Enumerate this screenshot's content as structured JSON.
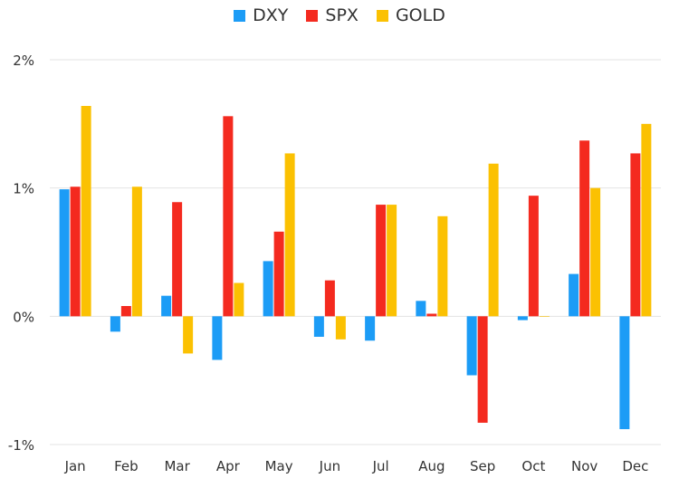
{
  "chart_data": {
    "type": "bar",
    "title": "",
    "xlabel": "",
    "ylabel": "",
    "categories": [
      "Jan",
      "Feb",
      "Mar",
      "Apr",
      "May",
      "Jun",
      "Jul",
      "Aug",
      "Sep",
      "Oct",
      "Nov",
      "Dec"
    ],
    "series": [
      {
        "name": "DXY",
        "color": "#1c9cf6",
        "values": [
          0.99,
          -0.12,
          0.16,
          -0.34,
          0.43,
          -0.16,
          -0.19,
          0.12,
          -0.46,
          -0.03,
          0.33,
          -0.88
        ]
      },
      {
        "name": "SPX",
        "color": "#f42a1f",
        "values": [
          1.01,
          0.08,
          0.89,
          1.56,
          0.66,
          0.28,
          0.87,
          0.02,
          -0.83,
          0.94,
          1.37,
          1.27
        ]
      },
      {
        "name": "GOLD",
        "color": "#fbc102",
        "values": [
          1.64,
          1.01,
          -0.29,
          0.26,
          1.27,
          -0.18,
          0.87,
          0.78,
          1.19,
          0.0,
          1.0,
          1.5
        ]
      }
    ],
    "ylim": [
      -1,
      2
    ],
    "yticks": [
      {
        "value": 2,
        "label": "2%"
      },
      {
        "value": 1,
        "label": "1%"
      },
      {
        "value": 0,
        "label": "0%"
      },
      {
        "value": -1,
        "label": "-1%"
      }
    ],
    "grid": true,
    "legend_position": "top-center"
  }
}
